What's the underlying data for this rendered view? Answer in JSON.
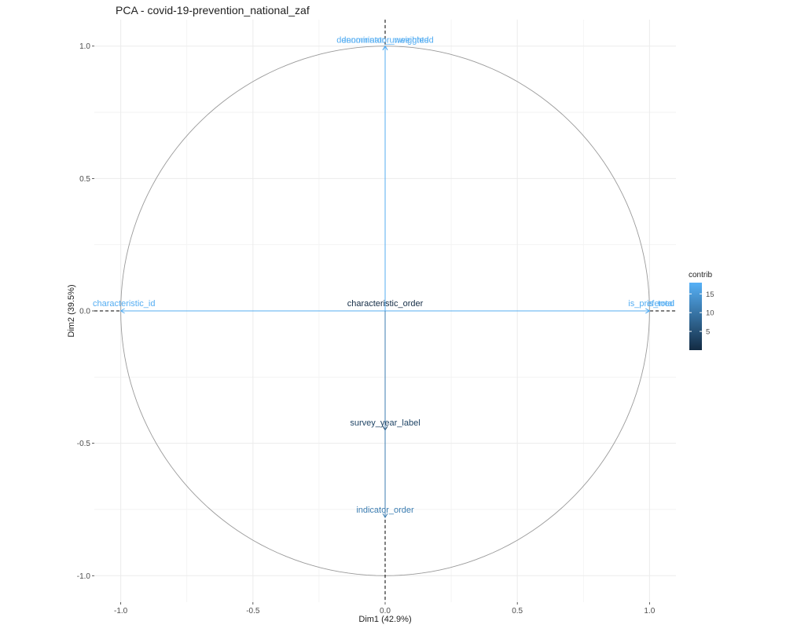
{
  "chart_data": {
    "type": "scatter",
    "title": "PCA - covid-19-prevention_national_zaf",
    "xlabel": "Dim1 (42.9%)",
    "ylabel": "Dim2 (39.5%)",
    "xlim": [
      -1.1,
      1.1
    ],
    "ylim": [
      -1.1,
      1.1
    ],
    "x_ticks": [
      -1.0,
      -0.5,
      0.0,
      0.5,
      1.0
    ],
    "x_tick_labels": [
      "-1.0",
      "-0.5",
      "0.0",
      "0.5",
      "1.0"
    ],
    "y_ticks": [
      -1.0,
      -0.5,
      0.0,
      0.5,
      1.0
    ],
    "y_tick_labels": [
      "-1.0",
      "-0.5",
      "0.0",
      "0.5",
      "1.0"
    ],
    "grid": true,
    "correlation_circle": true,
    "reference_lines": [
      0,
      0
    ],
    "variables": [
      {
        "name": "denominator_weighted",
        "x": 0.0,
        "y": 1.0,
        "contrib": 17.5
      },
      {
        "name": "denominator_unweighted",
        "x": 0.0,
        "y": 1.0,
        "contrib": 17.5
      },
      {
        "name": "characteristic_id",
        "x": -1.0,
        "y": 0.0,
        "contrib": 17.5
      },
      {
        "name": "characteristic_order",
        "x": 0.0,
        "y": 0.0,
        "contrib": 0.2
      },
      {
        "name": "is_preferred",
        "x": 1.0,
        "y": 0.0,
        "contrib": 17.5
      },
      {
        "name": "is_total",
        "x": 1.0,
        "y": 0.0,
        "contrib": 17.5
      },
      {
        "name": "survey_year_label",
        "x": 0.0,
        "y": -0.45,
        "contrib": 3.5
      },
      {
        "name": "indicator_order",
        "x": 0.0,
        "y": -0.78,
        "contrib": 11
      }
    ],
    "legend": {
      "title": "contrib",
      "position": "right",
      "range": [
        0,
        18
      ],
      "breaks": [
        5,
        10,
        15
      ],
      "break_labels": [
        "5",
        "10",
        "15"
      ],
      "low_color": "#132B43",
      "high_color": "#56B1F7"
    }
  }
}
